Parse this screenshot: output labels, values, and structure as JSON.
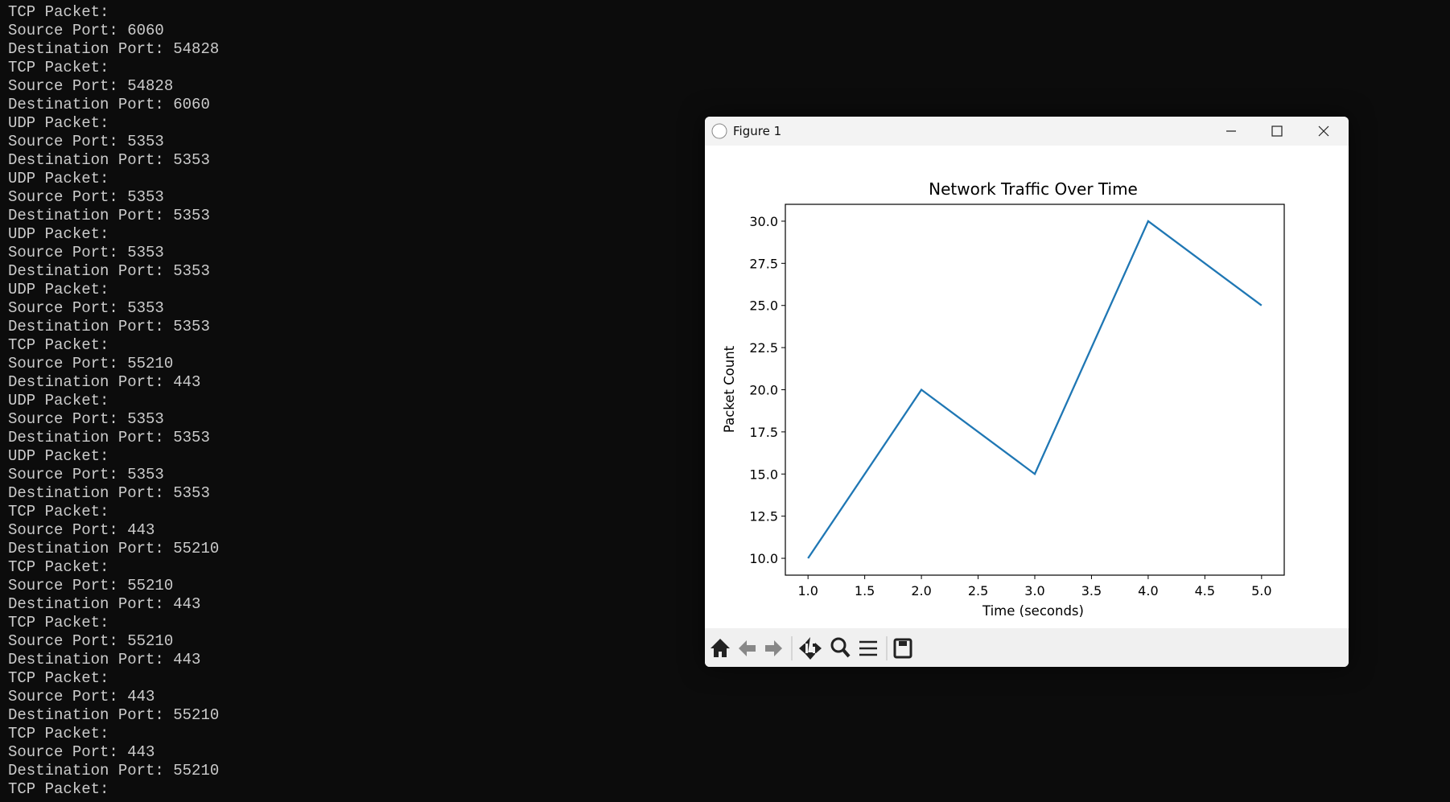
{
  "terminal": {
    "lines": [
      "TCP Packet:",
      "Source Port: 6060",
      "Destination Port: 54828",
      "TCP Packet:",
      "Source Port: 54828",
      "Destination Port: 6060",
      "UDP Packet:",
      "Source Port: 5353",
      "Destination Port: 5353",
      "UDP Packet:",
      "Source Port: 5353",
      "Destination Port: 5353",
      "UDP Packet:",
      "Source Port: 5353",
      "Destination Port: 5353",
      "UDP Packet:",
      "Source Port: 5353",
      "Destination Port: 5353",
      "TCP Packet:",
      "Source Port: 55210",
      "Destination Port: 443",
      "UDP Packet:",
      "Source Port: 5353",
      "Destination Port: 5353",
      "UDP Packet:",
      "Source Port: 5353",
      "Destination Port: 5353",
      "TCP Packet:",
      "Source Port: 443",
      "Destination Port: 55210",
      "TCP Packet:",
      "Source Port: 55210",
      "Destination Port: 443",
      "TCP Packet:",
      "Source Port: 55210",
      "Destination Port: 443",
      "TCP Packet:",
      "Source Port: 443",
      "Destination Port: 55210",
      "TCP Packet:",
      "Source Port: 443",
      "Destination Port: 55210",
      "TCP Packet:"
    ]
  },
  "window": {
    "title": "Figure 1"
  },
  "chart_data": {
    "type": "line",
    "title": "Network Traffic Over Time",
    "x_label": "Time (seconds)",
    "y_label": "Packet Count",
    "x": [
      1,
      2,
      3,
      4,
      5
    ],
    "series": [
      {
        "values": [
          10,
          20,
          15,
          30,
          25
        ],
        "color": "#1f77b4"
      }
    ],
    "xlim": [
      0.8,
      5.2
    ],
    "ylim": [
      9,
      31
    ],
    "xticks": [
      {
        "value": 1,
        "label": "1.0"
      },
      1.5,
      {
        "value": 2,
        "label": "2.0"
      },
      2.5,
      {
        "value": 3,
        "label": "3.0"
      },
      3.5,
      {
        "value": 4,
        "label": "4.0"
      },
      4.5,
      {
        "value": 5,
        "label": "5.0"
      }
    ],
    "yticks": [
      {
        "value": 10,
        "label": "10.0"
      },
      12.5,
      {
        "value": 15,
        "label": "15.0"
      },
      17.5,
      {
        "value": 20,
        "label": "20.0"
      },
      22.5,
      {
        "value": 25,
        "label": "25.0"
      },
      27.5,
      {
        "value": 30,
        "label": "30.0"
      }
    ],
    "grid": false
  }
}
